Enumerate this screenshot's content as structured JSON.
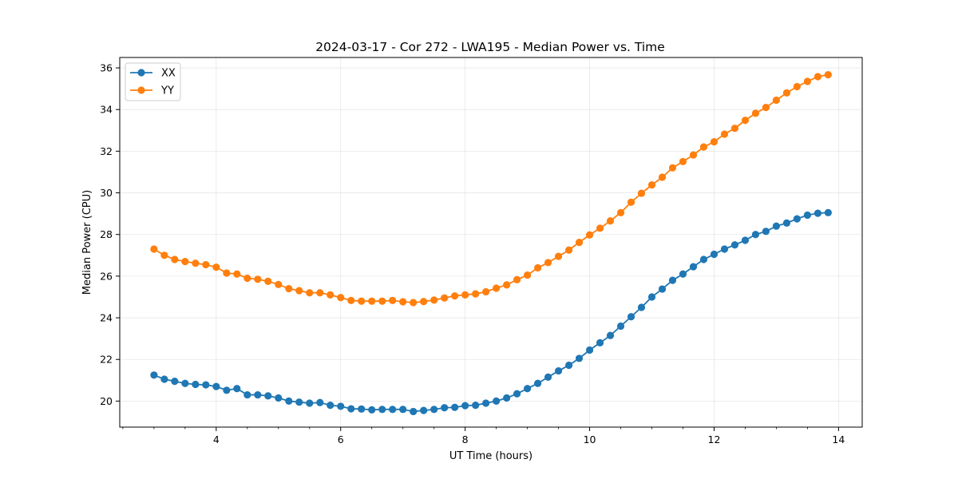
{
  "chart_data": {
    "type": "line",
    "title": "2024-03-17 - Cor 272 - LWA195 - Median Power vs. Time",
    "xlabel": "UT Time (hours)",
    "ylabel": "Median Power (CPU)",
    "xlim": [
      2.45,
      14.38
    ],
    "ylim": [
      18.75,
      36.5
    ],
    "xticks": [
      4,
      6,
      8,
      10,
      12,
      14
    ],
    "xtick_labels": [
      "4",
      "6",
      "8",
      "10",
      "12",
      "14"
    ],
    "yticks": [
      20,
      22,
      24,
      26,
      28,
      30,
      32,
      34,
      36
    ],
    "ytick_labels": [
      "20",
      "22",
      "24",
      "26",
      "28",
      "30",
      "32",
      "34",
      "36"
    ],
    "grid": true,
    "legend_position": "top-left",
    "x": [
      3.0,
      3.167,
      3.333,
      3.5,
      3.667,
      3.833,
      4.0,
      4.167,
      4.333,
      4.5,
      4.667,
      4.833,
      5.0,
      5.167,
      5.333,
      5.5,
      5.667,
      5.833,
      6.0,
      6.167,
      6.333,
      6.5,
      6.667,
      6.833,
      7.0,
      7.167,
      7.333,
      7.5,
      7.667,
      7.833,
      8.0,
      8.167,
      8.333,
      8.5,
      8.667,
      8.833,
      9.0,
      9.167,
      9.333,
      9.5,
      9.667,
      9.833,
      10.0,
      10.167,
      10.333,
      10.5,
      10.667,
      10.833,
      11.0,
      11.167,
      11.333,
      11.5,
      11.667,
      11.833,
      12.0,
      12.167,
      12.333,
      12.5,
      12.667,
      12.833,
      13.0,
      13.167,
      13.333,
      13.5,
      13.667,
      13.833
    ],
    "series": [
      {
        "name": "XX",
        "color": "#1f77b4",
        "values": [
          21.25,
          21.05,
          20.95,
          20.85,
          20.8,
          20.78,
          20.7,
          20.52,
          20.6,
          20.3,
          20.3,
          20.25,
          20.15,
          20.0,
          19.95,
          19.9,
          19.93,
          19.8,
          19.75,
          19.63,
          19.62,
          19.58,
          19.6,
          19.6,
          19.6,
          19.5,
          19.55,
          19.6,
          19.68,
          19.7,
          19.78,
          19.8,
          19.9,
          20.0,
          20.15,
          20.35,
          20.6,
          20.85,
          21.15,
          21.45,
          21.72,
          22.05,
          22.45,
          22.8,
          23.15,
          23.6,
          24.05,
          24.5,
          25.0,
          25.38,
          25.8,
          26.1,
          26.45,
          26.8,
          27.05,
          27.3,
          27.5,
          27.72,
          28.0,
          28.15,
          28.4,
          28.55,
          28.75,
          28.93,
          29.02,
          29.05
        ]
      },
      {
        "name": "YY",
        "color": "#ff7f0e",
        "values": [
          27.3,
          27.0,
          26.8,
          26.7,
          26.62,
          26.55,
          26.43,
          26.15,
          26.1,
          25.9,
          25.85,
          25.75,
          25.6,
          25.4,
          25.3,
          25.2,
          25.2,
          25.1,
          24.97,
          24.83,
          24.8,
          24.8,
          24.8,
          24.83,
          24.77,
          24.73,
          24.78,
          24.85,
          24.95,
          25.05,
          25.1,
          25.15,
          25.25,
          25.42,
          25.58,
          25.83,
          26.05,
          26.4,
          26.65,
          26.95,
          27.25,
          27.62,
          27.98,
          28.3,
          28.65,
          29.05,
          29.55,
          29.98,
          30.38,
          30.75,
          31.2,
          31.5,
          31.82,
          32.2,
          32.45,
          32.82,
          33.1,
          33.48,
          33.82,
          34.1,
          34.45,
          34.8,
          35.1,
          35.35,
          35.58,
          35.67
        ]
      }
    ]
  }
}
